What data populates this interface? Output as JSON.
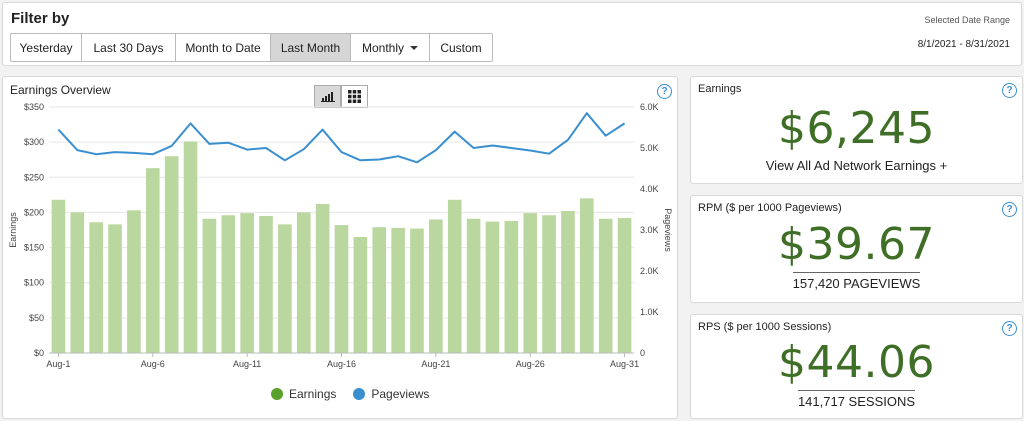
{
  "filter": {
    "title": "Filter by",
    "buttons": [
      "Yesterday",
      "Last 30 Days",
      "Month to Date",
      "Last Month",
      "Monthly",
      "Custom"
    ],
    "active": "Last Month",
    "range_label": "Selected Date Range",
    "range_value": "8/1/2021 - 8/31/2021"
  },
  "earnings_overview": {
    "title": "Earnings Overview",
    "view_toggle": [
      "bar-chart-icon",
      "grid-icon"
    ],
    "help": "?"
  },
  "cards": {
    "earnings": {
      "title": "Earnings",
      "value": "$6,245",
      "link": "View All Ad Network Earnings +",
      "help": "?"
    },
    "rpm": {
      "title": "RPM ($ per 1000 Pageviews)",
      "value": "$39.67",
      "sub": "157,420 PAGEVIEWS",
      "help": "?"
    },
    "rps": {
      "title": "RPS ($ per 1000 Sessions)",
      "value": "$44.06",
      "sub": "141,717 SESSIONS",
      "help": "?"
    }
  },
  "colors": {
    "earnings": "#b9d79e",
    "earnings_legend": "#5aa02c",
    "pageviews": "#3a8fd0",
    "metric": "#3f6f27"
  },
  "chart_data": {
    "type": "bar",
    "title": "Earnings Overview",
    "x": [
      "Aug-1",
      "Aug-2",
      "Aug-3",
      "Aug-4",
      "Aug-5",
      "Aug-6",
      "Aug-7",
      "Aug-8",
      "Aug-9",
      "Aug-10",
      "Aug-11",
      "Aug-12",
      "Aug-13",
      "Aug-14",
      "Aug-15",
      "Aug-16",
      "Aug-17",
      "Aug-18",
      "Aug-19",
      "Aug-20",
      "Aug-21",
      "Aug-22",
      "Aug-23",
      "Aug-24",
      "Aug-25",
      "Aug-26",
      "Aug-27",
      "Aug-28",
      "Aug-29",
      "Aug-30",
      "Aug-31"
    ],
    "x_tick_labels": [
      "Aug-1",
      "Aug-6",
      "Aug-11",
      "Aug-16",
      "Aug-21",
      "Aug-26",
      "Aug-31"
    ],
    "series": [
      {
        "name": "Earnings",
        "type": "bar",
        "axis": "left",
        "values": [
          218,
          200,
          186,
          183,
          203,
          263,
          280,
          301,
          191,
          196,
          199,
          195,
          183,
          200,
          212,
          182,
          165,
          179,
          178,
          177,
          190,
          218,
          191,
          187,
          188,
          199,
          196,
          202,
          220,
          191,
          192
        ]
      },
      {
        "name": "Pageviews",
        "type": "line",
        "axis": "right",
        "values": [
          5450,
          4950,
          4850,
          4900,
          4880,
          4850,
          5050,
          5600,
          5100,
          5130,
          4960,
          5000,
          4700,
          4970,
          5450,
          4900,
          4700,
          4720,
          4800,
          4650,
          4950,
          5400,
          5000,
          5060,
          5000,
          4940,
          4860,
          5200,
          5850,
          5300,
          5600
        ]
      }
    ],
    "ylabel": "Earnings",
    "y2label": "Pageviews",
    "ylim": [
      0,
      350
    ],
    "y2lim": [
      0,
      6000
    ],
    "yticks": [
      "$0",
      "$50",
      "$100",
      "$150",
      "$200",
      "$250",
      "$300",
      "$350"
    ],
    "y2ticks": [
      "0",
      "1.0K",
      "2.0K",
      "3.0K",
      "4.0K",
      "5.0K",
      "6.0K"
    ],
    "legend": [
      "Earnings",
      "Pageviews"
    ],
    "legend_position": "bottom"
  }
}
